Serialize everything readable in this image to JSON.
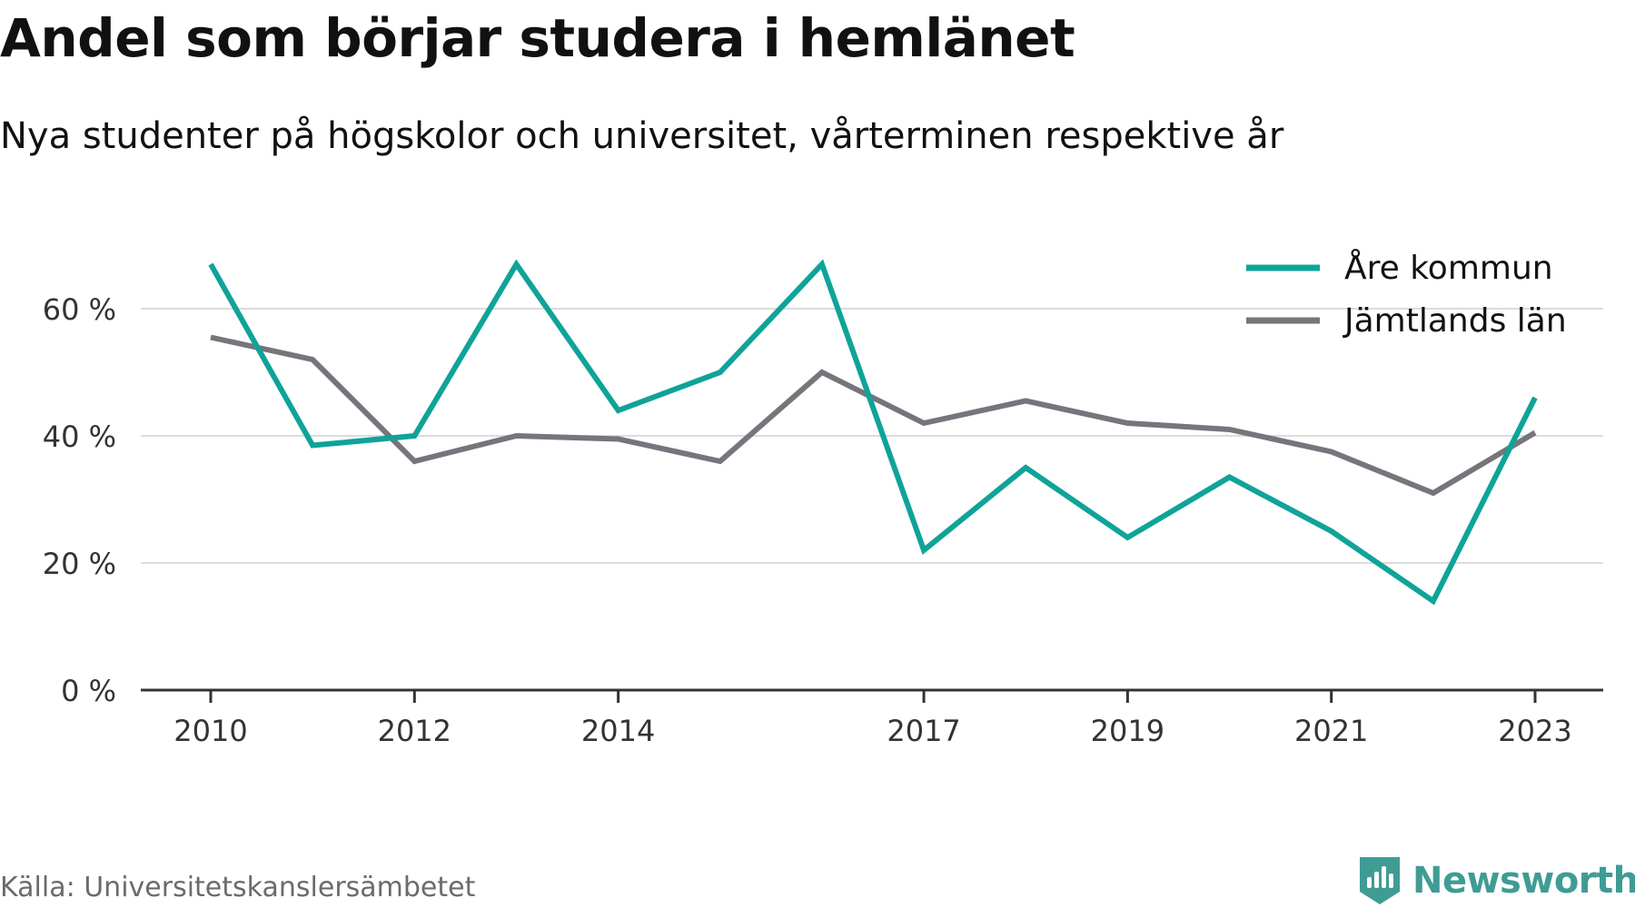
{
  "title": "Andel som börjar studera i hemlänet",
  "subtitle": "Nya studenter på högskolor och universitet, vårterminen respektive år",
  "source": "Källa: Universitetskanslersämbetet",
  "brand": {
    "name": "Newsworthy",
    "color": "#3f9c95",
    "icon": "bar-chart-shield-icon"
  },
  "chart_data": {
    "type": "line",
    "x": [
      2010,
      2011,
      2012,
      2013,
      2014,
      2015,
      2016,
      2017,
      2018,
      2019,
      2020,
      2021,
      2022,
      2023
    ],
    "x_ticks": [
      "2010",
      "2012",
      "2014",
      "2017",
      "2019",
      "2021",
      "2023"
    ],
    "y_ticks": [
      "0 %",
      "20 %",
      "40 %",
      "60 %"
    ],
    "ylim": [
      0,
      70
    ],
    "grid": true,
    "legend_position": "top-right",
    "series": [
      {
        "name": "Åre kommun",
        "color": "#0fa399",
        "values": [
          67.0,
          38.5,
          40.0,
          67.0,
          44.0,
          50.0,
          67.0,
          22.0,
          35.0,
          24.0,
          33.5,
          25.0,
          14.0,
          46.0
        ]
      },
      {
        "name": "Jämtlands län",
        "color": "#76757c",
        "values": [
          55.5,
          52.0,
          36.0,
          40.0,
          39.5,
          36.0,
          50.0,
          42.0,
          45.5,
          42.0,
          41.0,
          37.5,
          31.0,
          40.5
        ]
      }
    ]
  }
}
